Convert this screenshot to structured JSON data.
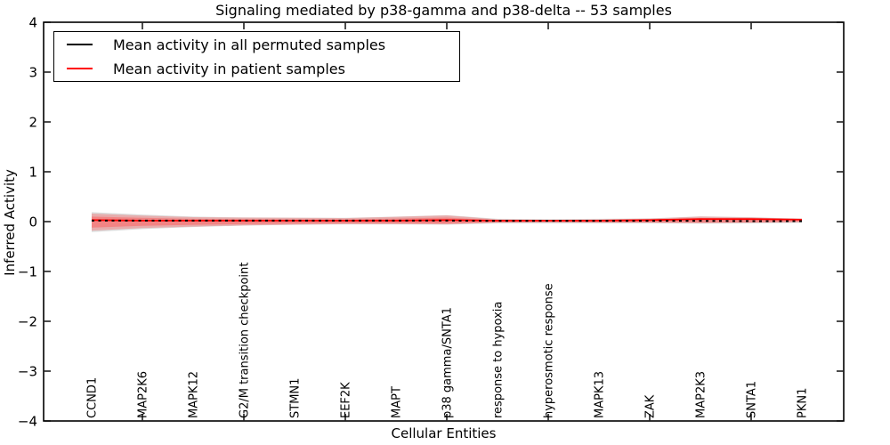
{
  "chart_data": {
    "type": "line",
    "title": "Signaling mediated by p38-gamma and p38-delta -- 53 samples",
    "xlabel": "Cellular Entities",
    "ylabel": "Inferred Activity",
    "ylim": [
      -4,
      4
    ],
    "yticks": [
      4,
      3,
      2,
      1,
      0,
      -1,
      -2,
      -3,
      -4
    ],
    "x_minor_tick_indices": [
      1,
      3,
      5,
      7,
      9,
      11,
      13
    ],
    "grid": false,
    "legend_position": "upper left",
    "categories": [
      "CCND1",
      "MAP2K6",
      "MAPK12",
      "G2/M transition checkpoint",
      "STMN1",
      "EEF2K",
      "MAPT",
      "p38 gamma/SNTA1",
      "response to hypoxia",
      "hyperosmotic response",
      "MAPK13",
      "ZAK",
      "MAP2K3",
      "SNTA1",
      "PKN1"
    ],
    "series": [
      {
        "name": "Mean activity in all permuted samples",
        "color": "#000000",
        "style": "dashed",
        "values": [
          0.02,
          0.02,
          0.02,
          0.02,
          0.02,
          0.02,
          0.02,
          0.02,
          0.015,
          0.015,
          0.015,
          0.015,
          0.015,
          0.01,
          0.01
        ]
      },
      {
        "name": "Mean activity in patient samples",
        "color": "#ff0000",
        "style": "solid",
        "values": [
          0.03,
          0.02,
          0.02,
          0.02,
          0.02,
          0.02,
          0.02,
          0.03,
          0.02,
          0.02,
          0.02,
          0.03,
          0.05,
          0.05,
          0.04
        ]
      }
    ],
    "patient_band_outer": {
      "upper": [
        0.16,
        0.12,
        0.09,
        0.08,
        0.075,
        0.07,
        0.095,
        0.125,
        0.045,
        0.035,
        0.045,
        0.06,
        0.1,
        0.085,
        0.05
      ],
      "lower": [
        -0.18,
        -0.13,
        -0.1,
        -0.075,
        -0.06,
        -0.05,
        -0.05,
        -0.055,
        -0.02,
        -0.015,
        -0.02,
        -0.02,
        -0.03,
        -0.02,
        -0.01
      ]
    },
    "patient_band_inner": {
      "upper": [
        0.1,
        0.075,
        0.055,
        0.05,
        0.045,
        0.045,
        0.06,
        0.08,
        0.03,
        0.025,
        0.03,
        0.04,
        0.065,
        0.055,
        0.035
      ],
      "lower": [
        -0.12,
        -0.085,
        -0.065,
        -0.05,
        -0.04,
        -0.033,
        -0.033,
        -0.036,
        -0.015,
        -0.01,
        -0.015,
        -0.015,
        -0.02,
        -0.015,
        -0.007
      ]
    },
    "permuted_band": {
      "upper": [
        0.19,
        0.14,
        0.1,
        0.085,
        0.08,
        0.075,
        0.1,
        0.13,
        0.055,
        0.05,
        0.055,
        0.065,
        0.105,
        0.09,
        0.06
      ],
      "lower": [
        -0.21,
        -0.15,
        -0.11,
        -0.08,
        -0.065,
        -0.055,
        -0.055,
        -0.06,
        -0.035,
        -0.035,
        -0.035,
        -0.035,
        -0.04,
        -0.035,
        -0.025
      ]
    },
    "colors": {
      "frame": "#000000",
      "patient_band": "#ff5555",
      "permuted_band": "#999999"
    }
  }
}
